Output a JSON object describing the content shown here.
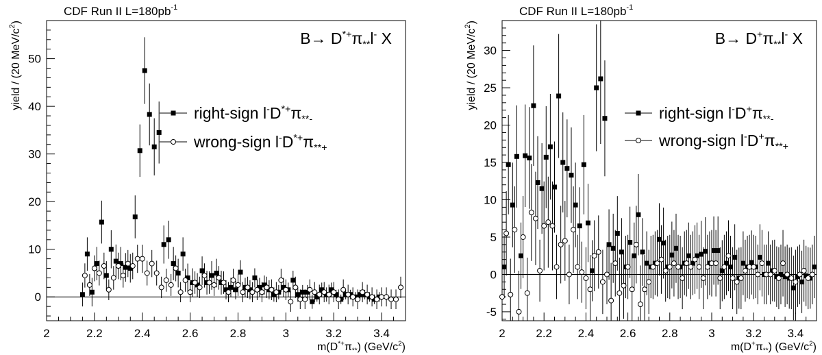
{
  "chart_data": [
    {
      "type": "scatter",
      "header": "CDF Run II   L=180pb",
      "header_sup": "-1",
      "process": "B→ D*+π**l- X",
      "xlabel": "m(D*+π**) (GeV/c2)",
      "ylabel": "yield / (20 MeV/c2)",
      "xlim": [
        2.0,
        3.5
      ],
      "ylim": [
        -5,
        58
      ],
      "xticks": [
        "2",
        "2.2",
        "2.4",
        "2.6",
        "2.8",
        "3",
        "3.2",
        "3.4"
      ],
      "yticks": [
        "0",
        "10",
        "20",
        "30",
        "40",
        "50"
      ],
      "grid": false,
      "legend_position": "right-middle",
      "series": [
        {
          "name": "right-sign l-D*+π**-",
          "marker": "filled-square",
          "x": [
            2.15,
            2.17,
            2.19,
            2.21,
            2.23,
            2.25,
            2.27,
            2.29,
            2.31,
            2.33,
            2.35,
            2.37,
            2.39,
            2.41,
            2.43,
            2.45,
            2.47,
            2.49,
            2.51,
            2.53,
            2.55,
            2.57,
            2.59,
            2.61,
            2.63,
            2.65,
            2.67,
            2.69,
            2.71,
            2.73,
            2.75,
            2.77,
            2.79,
            2.81,
            2.83,
            2.85,
            2.87,
            2.89,
            2.91,
            2.93,
            2.95,
            2.97,
            2.99,
            3.01,
            3.03,
            3.05,
            3.07,
            3.09,
            3.11,
            3.13,
            3.15,
            3.17,
            3.19,
            3.21,
            3.23,
            3.25,
            3.27,
            3.29,
            3.31,
            3.33,
            3.35,
            3.37,
            3.39
          ],
          "y": [
            0.5,
            9,
            1,
            7,
            15.7,
            4.5,
            10,
            7.5,
            7,
            6.2,
            6,
            16.8,
            30.7,
            47.5,
            38.3,
            31.5,
            34.5,
            11,
            12,
            7,
            5,
            9,
            4,
            3,
            2.5,
            5.5,
            3,
            4.5,
            5,
            3,
            1.5,
            2,
            1.5,
            5.2,
            2,
            1.5,
            4,
            2,
            2.5,
            1.5,
            0.5,
            1,
            2,
            1.5,
            3.5,
            0.5,
            1,
            1,
            -1,
            0,
            1.5,
            0.5,
            1.5,
            0.5,
            -0.5,
            0.5,
            0.5,
            0,
            0.5,
            0.5,
            0,
            -0.5,
            0
          ],
          "yerr": [
            2.5,
            3.5,
            3,
            3.5,
            4.5,
            3,
            4,
            3.5,
            3.5,
            3,
            3,
            4.5,
            5.5,
            7,
            6.5,
            6,
            6.5,
            4,
            4,
            3.5,
            3,
            3.5,
            3,
            3,
            2.5,
            3,
            2.5,
            3,
            3,
            2.5,
            2,
            2,
            2,
            2.5,
            2,
            2,
            2,
            2,
            2,
            2,
            1.5,
            1.5,
            2,
            1.5,
            2,
            1.5,
            1.5,
            1.5,
            1.5,
            1,
            1.5,
            1.5,
            1.5,
            1,
            1,
            1,
            1,
            1,
            1,
            1,
            1,
            1,
            1
          ]
        },
        {
          "name": "wrong-sign l-D*+π**+",
          "marker": "open-circle",
          "x": [
            2.16,
            2.18,
            2.2,
            2.22,
            2.24,
            2.26,
            2.28,
            2.3,
            2.32,
            2.34,
            2.36,
            2.38,
            2.4,
            2.42,
            2.44,
            2.46,
            2.48,
            2.5,
            2.52,
            2.54,
            2.56,
            2.58,
            2.6,
            2.62,
            2.64,
            2.66,
            2.68,
            2.7,
            2.72,
            2.74,
            2.76,
            2.78,
            2.8,
            2.82,
            2.84,
            2.86,
            2.88,
            2.9,
            2.92,
            2.94,
            2.96,
            2.98,
            3.0,
            3.02,
            3.04,
            3.06,
            3.08,
            3.1,
            3.12,
            3.14,
            3.16,
            3.18,
            3.2,
            3.22,
            3.24,
            3.26,
            3.28,
            3.3,
            3.32,
            3.34,
            3.36,
            3.38,
            3.4,
            3.42,
            3.44,
            3.46,
            3.48
          ],
          "y": [
            4.5,
            2.5,
            6,
            5,
            6.5,
            1.5,
            4,
            6.5,
            4.5,
            7,
            6.5,
            8,
            8,
            5,
            7,
            5,
            2,
            3.5,
            2.5,
            6,
            1,
            3.5,
            1,
            3,
            2,
            4.5,
            3,
            2.5,
            4,
            3,
            1,
            3.5,
            2.5,
            1,
            2,
            1,
            1.5,
            1,
            2,
            1.5,
            1,
            3.5,
            1.5,
            -1,
            2,
            -0.5,
            -0.5,
            1.5,
            1,
            0.5,
            1,
            0.5,
            1,
            -0.5,
            1.5,
            0.5,
            0,
            -0.5,
            1,
            0.5,
            0,
            -0.5,
            0,
            0,
            -0.5,
            -0.5,
            2
          ]
        }
      ]
    },
    {
      "type": "scatter",
      "header": "CDF Run II   L=180pb",
      "header_sup": "-1",
      "process": "B→ D+π**l- X",
      "xlabel": "m(D+π**) (GeV/c2)",
      "ylabel": "yield / (20 MeV/c2)",
      "xlim": [
        2.0,
        3.5
      ],
      "ylim": [
        -6.2,
        34
      ],
      "xticks": [
        "2",
        "2.2",
        "2.4",
        "2.6",
        "2.8",
        "3",
        "3.2",
        "3.4"
      ],
      "yticks": [
        "-5",
        "0",
        "5",
        "10",
        "15",
        "20",
        "25",
        "30"
      ],
      "grid": false,
      "legend_position": "right-middle",
      "series": [
        {
          "name": "right-sign l-D+π**-",
          "marker": "filled-square",
          "x": [
            2.01,
            2.03,
            2.05,
            2.07,
            2.09,
            2.11,
            2.13,
            2.15,
            2.17,
            2.19,
            2.21,
            2.23,
            2.25,
            2.27,
            2.29,
            2.31,
            2.33,
            2.35,
            2.37,
            2.39,
            2.41,
            2.43,
            2.45,
            2.47,
            2.49,
            2.51,
            2.53,
            2.55,
            2.57,
            2.59,
            2.61,
            2.63,
            2.65,
            2.67,
            2.69,
            2.71,
            2.73,
            2.75,
            2.77,
            2.79,
            2.81,
            2.83,
            2.85,
            2.87,
            2.89,
            2.91,
            2.93,
            2.95,
            2.97,
            2.99,
            3.01,
            3.03,
            3.05,
            3.07,
            3.09,
            3.11,
            3.13,
            3.15,
            3.17,
            3.19,
            3.21,
            3.23,
            3.25,
            3.27,
            3.29,
            3.31,
            3.33,
            3.35,
            3.37,
            3.39,
            3.41,
            3.43,
            3.45,
            3.47,
            3.49
          ],
          "y": [
            1,
            14.7,
            9.3,
            15.8,
            2.5,
            15.9,
            15.6,
            22.6,
            12.3,
            11.5,
            15.7,
            17.1,
            11.7,
            23.9,
            15,
            14.2,
            13.3,
            9.3,
            6.5,
            14.7,
            6.9,
            0.5,
            25,
            26.2,
            20.9,
            4,
            3.5,
            5.5,
            3,
            1,
            4.3,
            2.5,
            8,
            3,
            1.5,
            1,
            1.5,
            4.7,
            4.2,
            1,
            2.6,
            3.5,
            1,
            1.5,
            2.5,
            1.5,
            2.5,
            2.7,
            3.1,
            1.5,
            3.2,
            3.2,
            0.5,
            1.5,
            1,
            2.3,
            -0.5,
            1.5,
            1,
            1.6,
            1,
            2.3,
            0,
            1.5,
            0.5,
            -0.3,
            0,
            -0.3,
            -0.5,
            -1.8,
            -0.3,
            -1,
            -0.2,
            -0.5,
            1
          ]
        },
        {
          "name": "wrong-sign l-D+π**+",
          "marker": "open-circle",
          "x": [
            2.0,
            2.02,
            2.04,
            2.06,
            2.08,
            2.1,
            2.12,
            2.14,
            2.16,
            2.18,
            2.2,
            2.22,
            2.24,
            2.26,
            2.28,
            2.3,
            2.32,
            2.34,
            2.36,
            2.38,
            2.4,
            2.42,
            2.44,
            2.46,
            2.48,
            2.5,
            2.52,
            2.54,
            2.56,
            2.58,
            2.6,
            2.62,
            2.64,
            2.66,
            2.68,
            2.7,
            2.72,
            2.74,
            2.76,
            2.78,
            2.8,
            2.82,
            2.84,
            2.86,
            2.88,
            2.9,
            2.92,
            2.94,
            2.96,
            2.98,
            3.0,
            3.02,
            3.04,
            3.06,
            3.08,
            3.1,
            3.12,
            3.14,
            3.16,
            3.18,
            3.2,
            3.22,
            3.24,
            3.26,
            3.28,
            3.3,
            3.32,
            3.34,
            3.36,
            3.38,
            3.4,
            3.42,
            3.44,
            3.46,
            3.48
          ],
          "y": [
            -3,
            5.5,
            -2.7,
            6,
            -5,
            5,
            -2.5,
            8.3,
            7.5,
            0.5,
            6.5,
            7,
            6.5,
            1,
            4,
            4.5,
            0,
            6,
            1,
            0.3,
            -0.5,
            -2,
            2.5,
            3,
            -1,
            0,
            -3.5,
            1.5,
            -2.5,
            -1.5,
            1,
            -2,
            4,
            -4,
            -2,
            -1,
            1,
            1.5,
            2,
            0.5,
            1,
            1.5,
            1,
            -0.5,
            1.5,
            1,
            2,
            1,
            -0.5,
            1,
            1.5,
            1.5,
            -0.5,
            1,
            2.5,
            -0.5,
            -1,
            -0.5,
            0.5,
            1,
            1,
            0,
            1.5,
            0,
            0,
            0.5,
            -0.5,
            1.5,
            0,
            -0.5,
            -1,
            0,
            0.5,
            -0.5,
            0
          ]
        }
      ]
    }
  ]
}
